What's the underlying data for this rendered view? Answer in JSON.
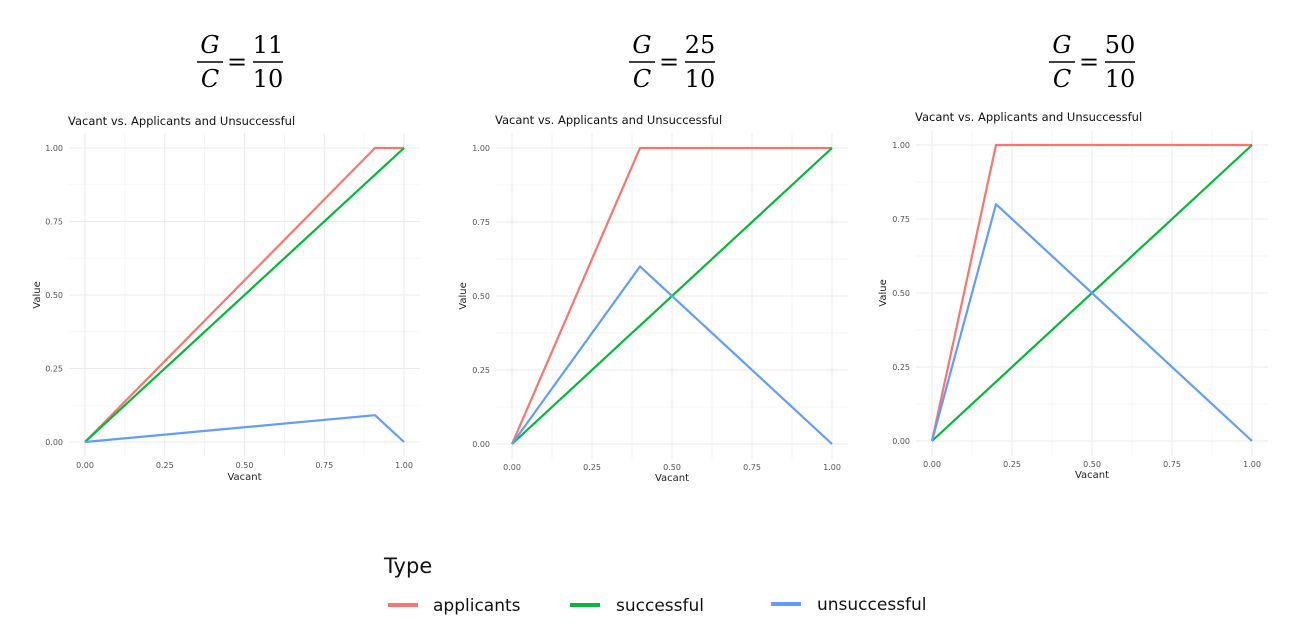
{
  "chart_data": [
    {
      "type": "line",
      "ratio": {
        "numerator_symbol": "G",
        "denominator_symbol": "C",
        "numerator": "11",
        "denominator": "10"
      },
      "title": "Vacant vs. Applicants and Unsuccessful",
      "xlabel": "Vacant",
      "ylabel": "Value",
      "xlim": [
        0,
        1
      ],
      "ylim": [
        0,
        1
      ],
      "xticks": [
        "0.00",
        "0.25",
        "0.50",
        "0.75",
        "1.00"
      ],
      "yticks": [
        "0.00",
        "0.25",
        "0.50",
        "0.75",
        "1.00"
      ],
      "grid": true,
      "series": [
        {
          "name": "applicants",
          "x": [
            0,
            0.909,
            1
          ],
          "y": [
            0,
            1,
            1
          ]
        },
        {
          "name": "successful",
          "x": [
            0,
            1
          ],
          "y": [
            0,
            1
          ]
        },
        {
          "name": "unsuccessful",
          "x": [
            0,
            0.909,
            1
          ],
          "y": [
            0,
            0.091,
            0
          ]
        }
      ]
    },
    {
      "type": "line",
      "ratio": {
        "numerator_symbol": "G",
        "denominator_symbol": "C",
        "numerator": "25",
        "denominator": "10"
      },
      "title": "Vacant vs. Applicants and Unsuccessful",
      "xlabel": "Vacant",
      "ylabel": "Value",
      "xlim": [
        0,
        1
      ],
      "ylim": [
        0,
        1
      ],
      "xticks": [
        "0.00",
        "0.25",
        "0.50",
        "0.75",
        "1.00"
      ],
      "yticks": [
        "0.00",
        "0.25",
        "0.50",
        "0.75",
        "1.00"
      ],
      "grid": true,
      "series": [
        {
          "name": "applicants",
          "x": [
            0,
            0.4,
            1
          ],
          "y": [
            0,
            1,
            1
          ]
        },
        {
          "name": "successful",
          "x": [
            0,
            1
          ],
          "y": [
            0,
            1
          ]
        },
        {
          "name": "unsuccessful",
          "x": [
            0,
            0.4,
            1
          ],
          "y": [
            0,
            0.6,
            0
          ]
        }
      ]
    },
    {
      "type": "line",
      "ratio": {
        "numerator_symbol": "G",
        "denominator_symbol": "C",
        "numerator": "50",
        "denominator": "10"
      },
      "title": "Vacant vs. Applicants and Unsuccessful",
      "xlabel": "Vacant",
      "ylabel": "Value",
      "xlim": [
        0,
        1
      ],
      "ylim": [
        0,
        1
      ],
      "xticks": [
        "0.00",
        "0.25",
        "0.50",
        "0.75",
        "1.00"
      ],
      "yticks": [
        "0.00",
        "0.25",
        "0.50",
        "0.75",
        "1.00"
      ],
      "grid": true,
      "series": [
        {
          "name": "applicants",
          "x": [
            0,
            0.2,
            1
          ],
          "y": [
            0,
            1,
            1
          ]
        },
        {
          "name": "successful",
          "x": [
            0,
            1
          ],
          "y": [
            0,
            1
          ]
        },
        {
          "name": "unsuccessful",
          "x": [
            0,
            0.2,
            1
          ],
          "y": [
            0,
            0.8,
            0
          ]
        }
      ]
    }
  ],
  "legend": {
    "title": "Type",
    "placement": "bottom-center",
    "items": [
      {
        "label": "applicants",
        "color": "#F8766D"
      },
      {
        "label": "successful",
        "color": "#00BA38"
      },
      {
        "label": "unsuccessful",
        "color": "#619CFF"
      }
    ]
  },
  "colors": {
    "applicants": "#F8766D",
    "successful": "#00BA38",
    "unsuccessful": "#619CFF",
    "grid": "#ebebeb"
  }
}
